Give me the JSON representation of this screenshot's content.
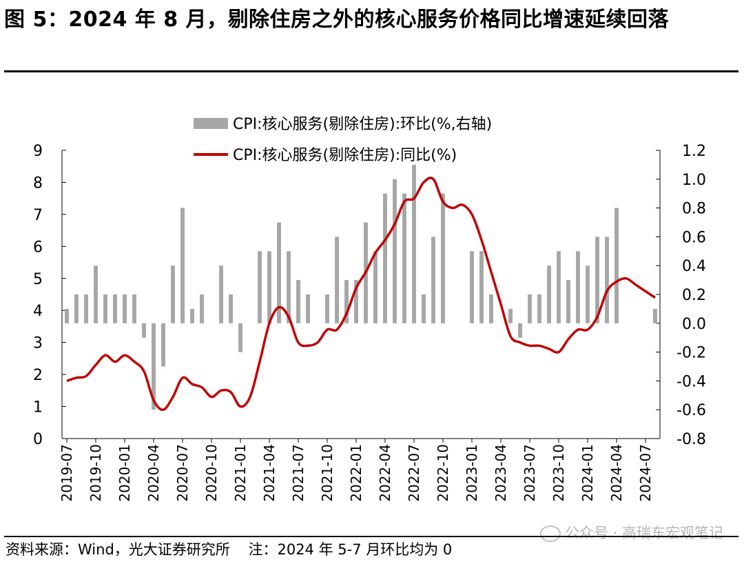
{
  "title": "图 5：2024 年 8 月，剔除住房之外的核心服务价格同比增速延续回落",
  "source_note": "资料来源：Wind，光大证券研究所    注：2024 年 5-7 月环比均为 0",
  "watermark": "公众号 · 高瑞东宏观笔记",
  "colors": {
    "bar": "#a6a6a6",
    "line": "#c00000",
    "axis": "#000000"
  },
  "chart_data": {
    "type": "bar+line",
    "legend": [
      "CPI:核心服务(剔除住房):环比(%,右轴)",
      "CPI:核心服务(剔除住房):同比(%)"
    ],
    "left_axis": {
      "min": 0,
      "max": 9,
      "ticks": [
        "0",
        "1",
        "2",
        "3",
        "4",
        "5",
        "6",
        "7",
        "8",
        "9"
      ]
    },
    "right_axis": {
      "min": -0.8,
      "max": 1.2,
      "ticks": [
        "-0.8",
        "-0.6",
        "-0.4",
        "-0.2",
        "0.0",
        "0.2",
        "0.4",
        "0.6",
        "0.8",
        "1.0",
        "1.2"
      ]
    },
    "x_tick_labels": [
      "2019-07",
      "2019-10",
      "2020-01",
      "2020-04",
      "2020-07",
      "2020-10",
      "2021-01",
      "2021-04",
      "2021-07",
      "2021-10",
      "2022-01",
      "2022-04",
      "2022-07",
      "2022-10",
      "2023-01",
      "2023-04",
      "2023-07",
      "2023-10",
      "2024-01",
      "2024-04",
      "2024-07"
    ],
    "months": [
      "2019-07",
      "2019-08",
      "2019-09",
      "2019-10",
      "2019-11",
      "2019-12",
      "2020-01",
      "2020-02",
      "2020-03",
      "2020-04",
      "2020-05",
      "2020-06",
      "2020-07",
      "2020-08",
      "2020-09",
      "2020-10",
      "2020-11",
      "2020-12",
      "2021-01",
      "2021-02",
      "2021-03",
      "2021-04",
      "2021-05",
      "2021-06",
      "2021-07",
      "2021-08",
      "2021-09",
      "2021-10",
      "2021-11",
      "2021-12",
      "2022-01",
      "2022-02",
      "2022-03",
      "2022-04",
      "2022-05",
      "2022-06",
      "2022-07",
      "2022-08",
      "2022-09",
      "2022-10",
      "2022-11",
      "2022-12",
      "2023-01",
      "2023-02",
      "2023-03",
      "2023-04",
      "2023-05",
      "2023-06",
      "2023-07",
      "2023-08",
      "2023-09",
      "2023-10",
      "2023-11",
      "2023-12",
      "2024-01",
      "2024-02",
      "2024-03",
      "2024-04",
      "2024-05",
      "2024-06",
      "2024-07",
      "2024-08"
    ],
    "mom": [
      0.1,
      0.2,
      0.2,
      0.4,
      0.2,
      0.2,
      0.2,
      0.2,
      -0.1,
      -0.6,
      -0.3,
      0.4,
      0.8,
      0.1,
      0.2,
      0.0,
      0.4,
      0.2,
      -0.2,
      0.0,
      0.5,
      0.5,
      0.7,
      0.5,
      0.3,
      0.2,
      0.0,
      0.2,
      0.6,
      0.3,
      0.3,
      0.7,
      0.5,
      0.9,
      1.0,
      0.9,
      1.1,
      0.2,
      0.6,
      0.9,
      0.0,
      0.0,
      0.5,
      0.5,
      0.2,
      0.0,
      0.1,
      -0.1,
      0.2,
      0.2,
      0.4,
      0.5,
      0.3,
      0.5,
      0.4,
      0.6,
      0.6,
      0.8,
      0.0,
      0.0,
      0.0,
      0.1
    ],
    "yoy": [
      1.8,
      1.9,
      1.95,
      2.3,
      2.6,
      2.4,
      2.6,
      2.4,
      2.1,
      1.2,
      0.9,
      1.3,
      1.9,
      1.7,
      1.6,
      1.3,
      1.5,
      1.45,
      1.0,
      1.3,
      2.4,
      3.6,
      4.1,
      3.8,
      3.0,
      2.9,
      3.0,
      3.4,
      3.4,
      3.9,
      4.7,
      5.2,
      5.8,
      6.2,
      6.7,
      7.4,
      7.5,
      8.0,
      8.1,
      7.4,
      7.2,
      7.3,
      7.0,
      6.2,
      5.2,
      4.2,
      3.2,
      3.0,
      2.9,
      2.9,
      2.8,
      2.7,
      3.1,
      3.4,
      3.4,
      3.8,
      4.6,
      4.9,
      5.0,
      4.8,
      4.6,
      4.4
    ]
  }
}
